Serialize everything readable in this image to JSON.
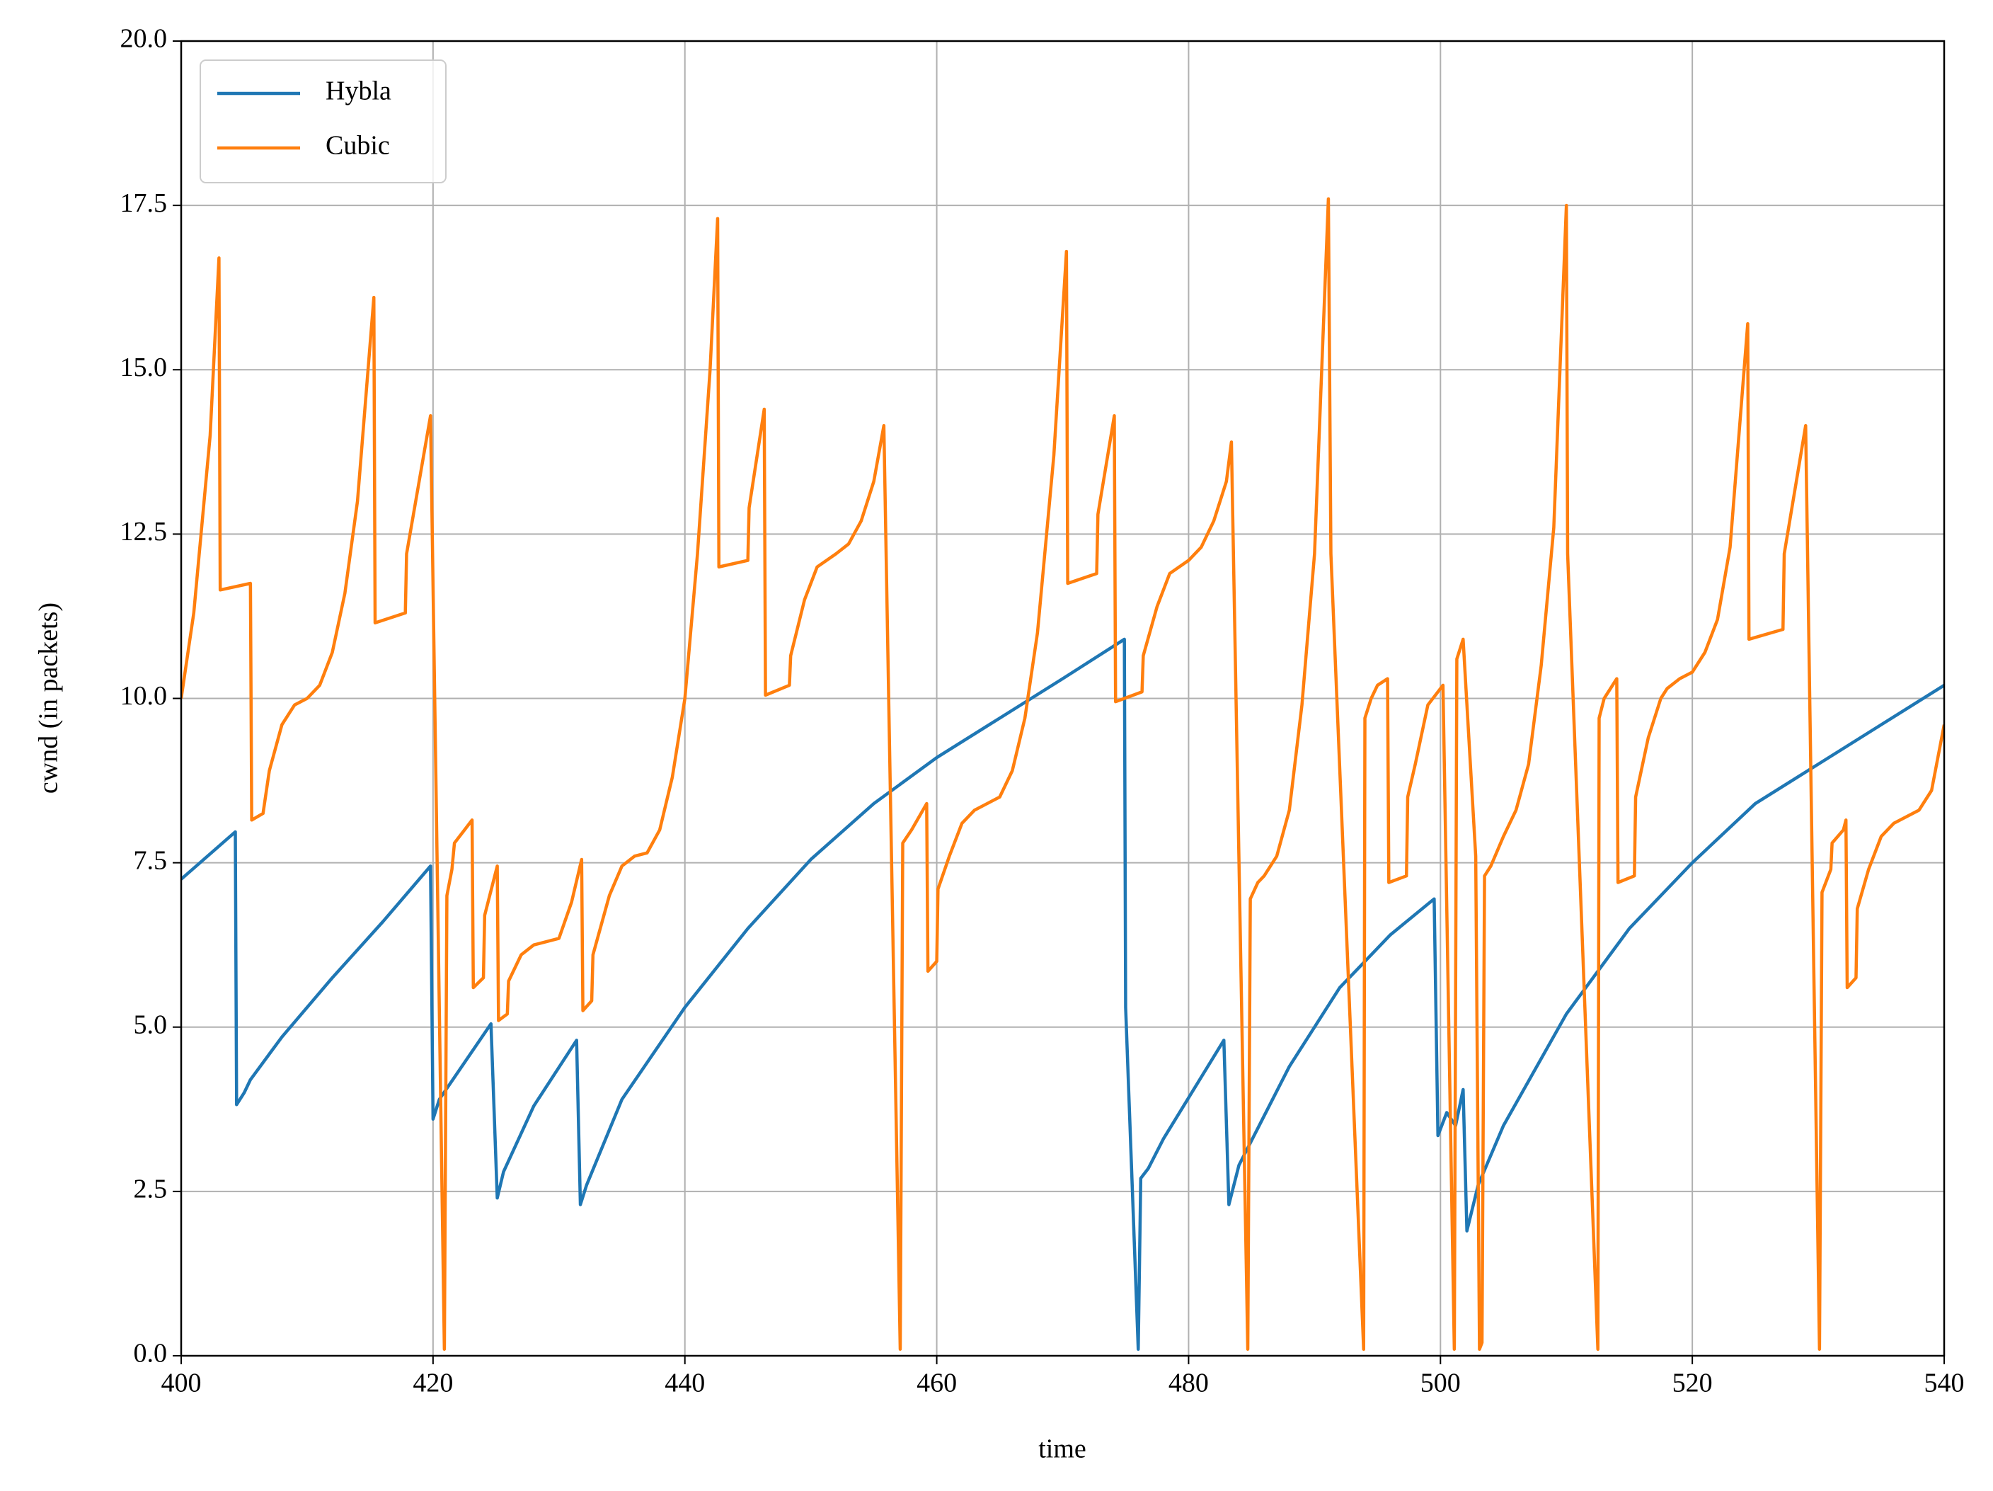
{
  "chart_data": {
    "type": "line",
    "xlabel": "time",
    "ylabel": "cwnd (in packets)",
    "xlim": [
      400,
      540
    ],
    "ylim": [
      0,
      20
    ],
    "xticks": [
      400,
      420,
      440,
      460,
      480,
      500,
      520,
      540
    ],
    "yticks": [
      {
        "value": 0,
        "label": "0.0"
      },
      2.5,
      {
        "value": 5,
        "label": "5.0"
      },
      7.5,
      {
        "value": 10,
        "label": "10.0"
      },
      12.5,
      {
        "value": 15,
        "label": "15.0"
      },
      17.5,
      {
        "value": 20,
        "label": "20.0"
      }
    ],
    "grid": true,
    "legend": "upper left",
    "series": [
      {
        "name": "Hybla",
        "color": "#1f77b4",
        "x": [
          400,
          404.3,
          404.4,
          405,
          405.5,
          408,
          412,
          416,
          419.8,
          420,
          420.5,
          424.6,
          425.1,
          425.6,
          428,
          431.4,
          431.7,
          432.2,
          435,
          440,
          445,
          450,
          455,
          460,
          465,
          470,
          474.9,
          475.0,
          476.0,
          476.2,
          476.8,
          478,
          482.8,
          483.2,
          484,
          488,
          492,
          496,
          499.5,
          499.8,
          500.5,
          501.2,
          501.8,
          502.1,
          503,
          505,
          510,
          515,
          520,
          525,
          530,
          535,
          540
        ],
        "values": [
          7.25,
          7.97,
          3.82,
          4.0,
          4.2,
          4.85,
          5.75,
          6.6,
          7.45,
          3.6,
          3.9,
          5.05,
          2.4,
          2.8,
          3.8,
          4.8,
          2.3,
          2.6,
          3.9,
          5.3,
          6.5,
          7.55,
          8.4,
          9.1,
          9.7,
          10.3,
          10.9,
          5.3,
          0.1,
          2.7,
          2.85,
          3.3,
          4.8,
          2.3,
          2.9,
          4.4,
          5.6,
          6.4,
          6.95,
          3.35,
          3.7,
          3.5,
          4.05,
          1.9,
          2.6,
          3.5,
          5.2,
          6.5,
          7.5,
          8.4,
          9.0,
          9.6,
          10.2
        ]
      },
      {
        "name": "Cubic",
        "color": "#ff7f0e",
        "x": [
          400,
          401,
          402.3,
          403,
          403.1,
          405.5,
          405.6,
          406.5,
          407,
          408,
          409,
          410,
          411,
          412,
          413,
          414,
          415.3,
          415.4,
          417.8,
          417.9,
          419.8,
          420.9,
          421.1,
          421.5,
          421.7,
          422.5,
          423.1,
          423.2,
          424,
          424.1,
          425.1,
          425.2,
          425.9,
          426,
          427,
          428,
          430,
          431,
          431.8,
          431.9,
          432.6,
          432.7,
          434,
          435,
          436,
          437,
          438,
          439,
          440,
          441,
          442,
          442.6,
          442.7,
          445,
          445.1,
          446.3,
          446.4,
          448.3,
          448.4,
          449.5,
          450.5,
          452,
          453,
          454,
          455,
          455.8,
          457.1,
          457.3,
          458,
          459.2,
          459.3,
          460,
          460.1,
          461,
          462,
          463,
          464,
          465,
          466,
          467,
          468,
          469.3,
          470.3,
          470.4,
          472.7,
          472.8,
          474.1,
          474.2,
          476.3,
          476.4,
          477.5,
          478.5,
          480,
          481,
          482,
          483,
          483.4,
          484.7,
          484.9,
          485.5,
          486,
          487,
          488,
          489,
          490,
          491.1,
          491.3,
          493.9,
          494,
          494.5,
          495,
          495.8,
          495.9,
          497.3,
          497.4,
          498,
          499,
          500.2,
          501.1,
          501.3,
          501.8,
          502.8,
          503.1,
          503.3,
          503.5,
          504,
          505,
          506,
          507,
          508,
          509,
          510,
          510.1,
          512.5,
          512.6,
          513,
          514,
          514.1,
          515.4,
          515.5,
          516.5,
          517.5,
          518,
          519,
          520,
          521,
          522,
          523,
          524.4,
          524.5,
          527.2,
          527.3,
          529,
          530.1,
          530.3,
          531,
          531.1,
          532,
          532.2,
          532.3,
          533,
          533.1,
          534,
          535,
          536,
          537,
          538,
          539,
          540
        ],
        "values": [
          10.0,
          11.3,
          14,
          16.7,
          11.65,
          11.75,
          8.15,
          8.25,
          8.9,
          9.6,
          9.9,
          10.0,
          10.2,
          10.7,
          11.6,
          13,
          16.1,
          11.15,
          11.3,
          12.2,
          14.3,
          0.1,
          7.0,
          7.4,
          7.8,
          8.0,
          8.15,
          5.6,
          5.75,
          6.7,
          7.45,
          5.1,
          5.2,
          5.7,
          6.1,
          6.25,
          6.35,
          6.9,
          7.55,
          5.25,
          5.4,
          6.1,
          7.0,
          7.45,
          7.6,
          7.65,
          8.0,
          8.8,
          10.0,
          12.2,
          15,
          17.3,
          12.0,
          12.1,
          12.9,
          14.4,
          10.05,
          10.2,
          10.65,
          11.5,
          12.0,
          12.2,
          12.35,
          12.7,
          13.3,
          14.15,
          0.1,
          7.8,
          8.0,
          8.4,
          5.85,
          6.0,
          7.1,
          7.6,
          8.1,
          8.3,
          8.4,
          8.5,
          8.9,
          9.7,
          11,
          13.7,
          16.8,
          11.75,
          11.9,
          12.8,
          14.3,
          9.95,
          10.1,
          10.65,
          11.4,
          11.9,
          12.1,
          12.3,
          12.7,
          13.3,
          13.9,
          0.1,
          6.95,
          7.2,
          7.3,
          7.6,
          8.3,
          9.9,
          12.2,
          17.6,
          12.2,
          0.1,
          9.7,
          10.0,
          10.2,
          10.3,
          7.2,
          7.3,
          8.5,
          9.0,
          9.9,
          10.2,
          0.1,
          10.6,
          10.9,
          7.6,
          0.1,
          0.2,
          7.3,
          7.45,
          7.9,
          8.3,
          9.0,
          10.5,
          12.6,
          17.5,
          12.2,
          0.1,
          9.7,
          10.0,
          10.3,
          7.2,
          7.3,
          8.5,
          9.4,
          10.0,
          10.15,
          10.3,
          10.4,
          10.7,
          11.2,
          12.3,
          15.7,
          10.9,
          11.05,
          12.2,
          14.15,
          0.1,
          7.05,
          7.4,
          7.8,
          8.0,
          8.15,
          5.6,
          5.75,
          6.8,
          7.4,
          7.9,
          8.1,
          8.2,
          8.3,
          8.6,
          9.6
        ]
      }
    ]
  }
}
